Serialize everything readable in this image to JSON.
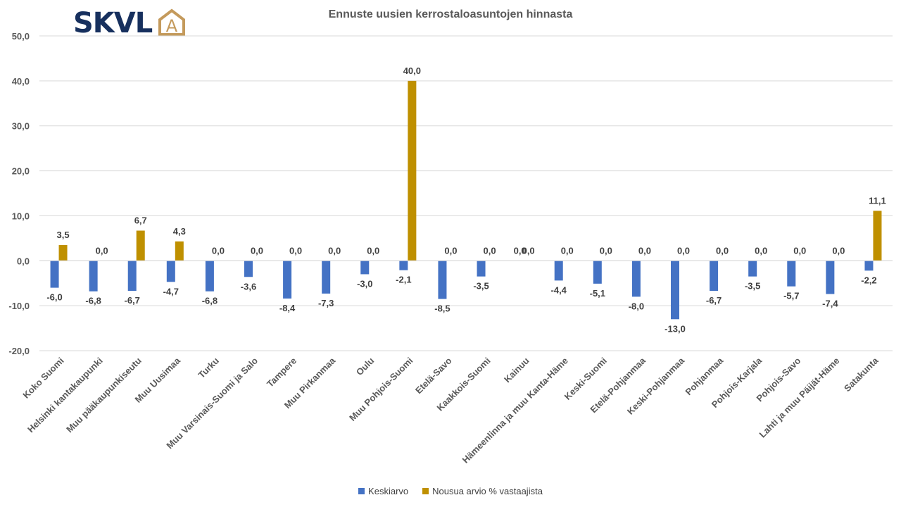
{
  "logo": {
    "text": "SKVL",
    "mark": "A"
  },
  "chart_data": {
    "type": "bar",
    "title": "Ennuste uusien kerrostaloasuntojen hinnasta",
    "xlabel": "",
    "ylabel": "",
    "ylim": [
      -20,
      50
    ],
    "yticks": [
      50,
      40,
      30,
      20,
      10,
      0,
      -10,
      -20
    ],
    "ytick_labels": [
      "50,0",
      "40,0",
      "30,0",
      "20,0",
      "10,0",
      "0,0",
      "-10,0",
      "-20,0"
    ],
    "grid": true,
    "legend_position": "bottom",
    "categories": [
      "Koko Suomi",
      "Helsinki kantakaupunki",
      "Muu pääkaupunkiseutu",
      "Muu Uusimaa",
      "Turku",
      "Muu Varsinais-Suomi ja Salo",
      "Tampere",
      "Muu Pirkanmaa",
      "Oulu",
      "Muu Pohjois-Suomi",
      "Etelä-Savo",
      "Kaakkois-Suomi",
      "Kainuu",
      "Hämeenlinna ja muu Kanta-Häme",
      "Keski-Suomi",
      "Etelä-Pohjanmaa",
      "Keski-Pohjanmaa",
      "Pohjanmaa",
      "Pohjois-Karjala",
      "Pohjois-Savo",
      "Lahti ja muu Päijät-Häme",
      "Satakunta"
    ],
    "series": [
      {
        "name": "Keskiarvo",
        "color": "#4472c4",
        "values": [
          -6.0,
          -6.8,
          -6.7,
          -4.7,
          -6.8,
          -3.6,
          -8.4,
          -7.3,
          -3.0,
          -2.1,
          -8.5,
          -3.5,
          0.0,
          -4.4,
          -5.1,
          -8.0,
          -13.0,
          -6.7,
          -3.5,
          -5.7,
          -7.4,
          -2.2
        ],
        "labels": [
          "-6,0",
          "-6,8",
          "-6,7",
          "-4,7",
          "-6,8",
          "-3,6",
          "-8,4",
          "-7,3",
          "-3,0",
          "-2,1",
          "-8,5",
          "-3,5",
          "0,0",
          "-4,4",
          "-5,1",
          "-8,0",
          "-13,0",
          "-6,7",
          "-3,5",
          "-5,7",
          "-7,4",
          "-2,2"
        ]
      },
      {
        "name": "Nousua arvio % vastaajista",
        "color": "#bf9000",
        "values": [
          3.5,
          0.0,
          6.7,
          4.3,
          0.0,
          0.0,
          0.0,
          0.0,
          0.0,
          40.0,
          0.0,
          0.0,
          0.0,
          0.0,
          0.0,
          0.0,
          0.0,
          0.0,
          0.0,
          0.0,
          0.0,
          11.1
        ],
        "labels": [
          "3,5",
          "0,0",
          "6,7",
          "4,3",
          "0,0",
          "0,0",
          "0,0",
          "0,0",
          "0,0",
          "40,0",
          "0,0",
          "0,0",
          "0,0",
          "0,0",
          "0,0",
          "0,0",
          "0,0",
          "0,0",
          "0,0",
          "0,0",
          "0,0",
          "11,1"
        ]
      }
    ]
  }
}
